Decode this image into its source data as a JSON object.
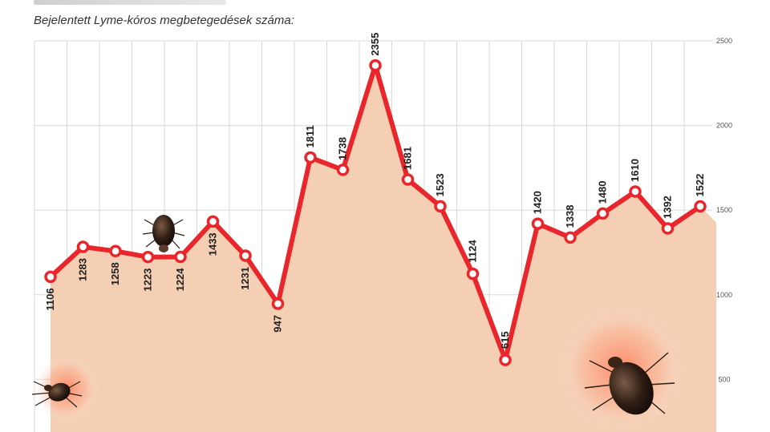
{
  "chart_data": {
    "type": "line",
    "title": "Bejelentett Lyme-kóros megbetegedések száma:",
    "xlabel": "",
    "ylabel": "",
    "x": [
      1,
      2,
      3,
      4,
      5,
      6,
      7,
      8,
      9,
      10,
      11,
      12,
      13,
      14,
      15,
      16,
      17,
      18,
      19,
      20,
      21
    ],
    "values": [
      1106,
      1283,
      1258,
      1223,
      1224,
      1433,
      1231,
      947,
      1811,
      1738,
      2355,
      1681,
      1523,
      1124,
      615,
      1420,
      1338,
      1480,
      1610,
      1392,
      1522
    ],
    "ylim": [
      0,
      2500
    ],
    "y_ticks": [
      500,
      1000,
      1500,
      2000,
      2500
    ],
    "y_tick_labels": [
      "500",
      "1000",
      "1500",
      "2000",
      "2500"
    ],
    "grid": true,
    "area_fill": true,
    "colors": {
      "line": "#e8262b",
      "area": "#f4cfb3",
      "marker_fill": "#ffffff",
      "grid": "#d9d9d9",
      "tick_decor": "#c53a2e"
    },
    "decorations": [
      "tick-icon",
      "tick-icon",
      "tick-icon"
    ]
  }
}
